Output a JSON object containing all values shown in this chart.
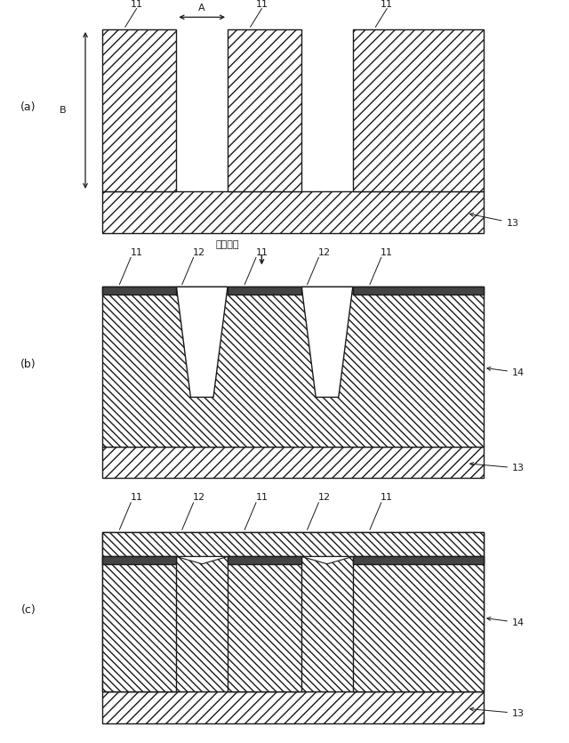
{
  "bg_color": "#ffffff",
  "line_color": "#1a1a1a",
  "fig_width": 6.4,
  "fig_height": 8.35,
  "label_gas": "原料ガス",
  "panel_a": "(a)",
  "panel_b": "(b)",
  "panel_c": "(c)"
}
